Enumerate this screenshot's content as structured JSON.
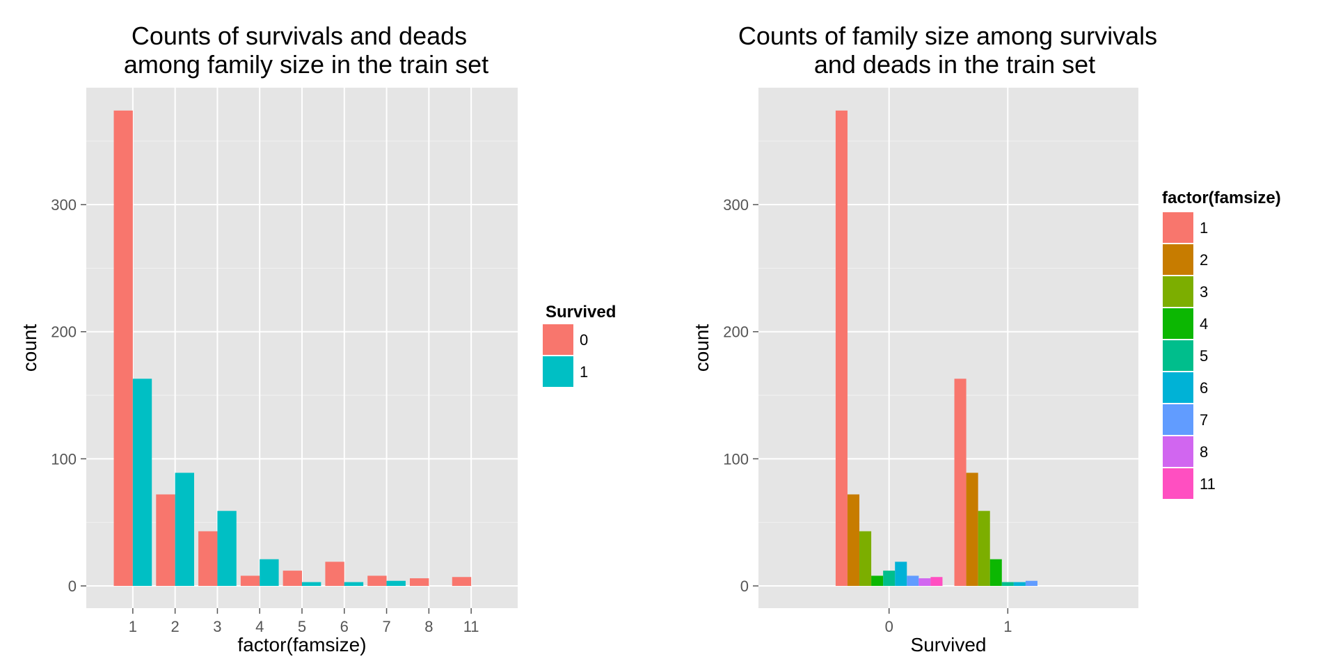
{
  "chart_data": [
    {
      "type": "bar",
      "title_lines": [
        "Counts of survivals and deads",
        "among family size in the train set"
      ],
      "xlabel": "factor(famsize)",
      "ylabel": "count",
      "categories": [
        "1",
        "2",
        "3",
        "4",
        "5",
        "6",
        "7",
        "8",
        "11"
      ],
      "series": [
        {
          "name": "0",
          "color": "#F8766D",
          "values": [
            374,
            72,
            43,
            8,
            12,
            19,
            8,
            6,
            7
          ]
        },
        {
          "name": "1",
          "color": "#00BFC4",
          "values": [
            163,
            89,
            59,
            21,
            3,
            3,
            4,
            null,
            null
          ]
        }
      ],
      "y_ticks": [
        0,
        100,
        200,
        300
      ],
      "ylim": [
        -17.5,
        392
      ],
      "grid": true,
      "legend": {
        "title": "Survived",
        "position": "right",
        "entries": [
          "0",
          "1"
        ]
      }
    },
    {
      "type": "bar",
      "title_lines": [
        "Counts of family size among survivals",
        "and deads in the train set"
      ],
      "xlabel": "Survived",
      "ylabel": "count",
      "categories": [
        "0",
        "1"
      ],
      "series": [
        {
          "name": "1",
          "color": "#F8766D",
          "values": [
            374,
            163
          ]
        },
        {
          "name": "2",
          "color": "#C77C00",
          "values": [
            72,
            89
          ]
        },
        {
          "name": "3",
          "color": "#7CAE00",
          "values": [
            43,
            59
          ]
        },
        {
          "name": "4",
          "color": "#0CB702",
          "values": [
            8,
            21
          ]
        },
        {
          "name": "5",
          "color": "#00BE8C",
          "values": [
            12,
            3
          ]
        },
        {
          "name": "6",
          "color": "#00B2D6",
          "values": [
            19,
            3
          ]
        },
        {
          "name": "7",
          "color": "#619CFF",
          "values": [
            8,
            4
          ]
        },
        {
          "name": "8",
          "color": "#D166F0",
          "values": [
            6,
            0
          ]
        },
        {
          "name": "11",
          "color": "#FF4FC1",
          "values": [
            7,
            0
          ]
        }
      ],
      "y_ticks": [
        0,
        100,
        200,
        300
      ],
      "ylim": [
        -17.5,
        392
      ],
      "grid": true,
      "legend": {
        "title": "factor(famsize)",
        "position": "right",
        "entries": [
          "1",
          "2",
          "3",
          "4",
          "5",
          "6",
          "7",
          "8",
          "11"
        ]
      }
    }
  ]
}
